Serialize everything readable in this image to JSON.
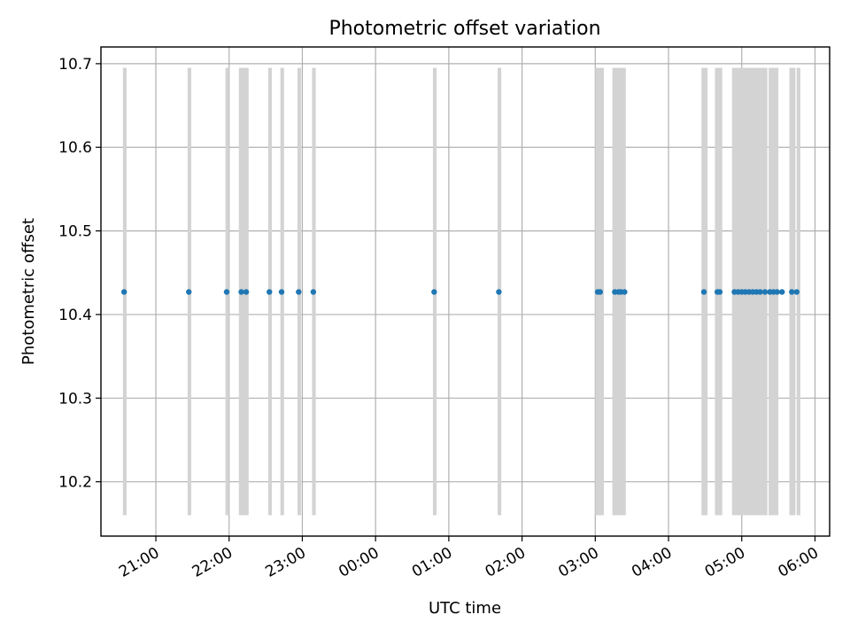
{
  "chart_data": {
    "type": "scatter",
    "title": "Photometric offset variation",
    "xlabel": "UTC time",
    "ylabel": "Photometric offset",
    "x_unit": "time of day (UTC), hours; values past midnight continue as 24+",
    "xlim": [
      "20:15",
      "06:12"
    ],
    "ylim": [
      10.135,
      10.72
    ],
    "x_tick_labels": [
      "21:00",
      "22:00",
      "23:00",
      "00:00",
      "01:00",
      "02:00",
      "03:00",
      "04:00",
      "05:00",
      "06:00"
    ],
    "y_tick_labels": [
      "10.2",
      "10.3",
      "10.4",
      "10.5",
      "10.6",
      "10.7"
    ],
    "grid": true,
    "colors": {
      "points": "#1f77b4",
      "bands": "#d3d3d3",
      "grid": "#b0b0b0"
    },
    "band_range": [
      10.16,
      10.695
    ],
    "bands": [
      [
        "20:33",
        "20:36"
      ],
      [
        "21:26",
        "21:29"
      ],
      [
        "21:57",
        "22:00"
      ],
      [
        "22:08",
        "22:16"
      ],
      [
        "22:32",
        "22:35"
      ],
      [
        "22:42",
        "22:45"
      ],
      [
        "22:56",
        "22:59"
      ],
      [
        "23:08",
        "23:11"
      ],
      [
        "00:47",
        "00:50"
      ],
      [
        "01:40",
        "01:43"
      ],
      [
        "03:00",
        "03:07"
      ],
      [
        "03:14",
        "03:25"
      ],
      [
        "04:27",
        "04:32"
      ],
      [
        "04:38",
        "04:44"
      ],
      [
        "04:52",
        "05:21"
      ],
      [
        "05:22",
        "05:30"
      ],
      [
        "05:39",
        "05:44"
      ],
      [
        "05:45",
        "05:48"
      ]
    ],
    "series": [
      {
        "x": [
          "20:34",
          "21:27",
          "21:58",
          "22:10",
          "22:14",
          "22:33",
          "22:43",
          "22:57",
          "23:09",
          "00:48",
          "01:41",
          "03:02",
          "03:04",
          "03:16",
          "03:19",
          "03:21",
          "03:24",
          "04:29",
          "04:40",
          "04:42",
          "04:54",
          "04:57",
          "05:00",
          "05:03",
          "05:06",
          "05:09",
          "05:12",
          "05:15",
          "05:19",
          "05:23",
          "05:26",
          "05:29",
          "05:33",
          "05:41",
          "05:45"
        ],
        "y": [
          10.427,
          10.427,
          10.427,
          10.427,
          10.427,
          10.427,
          10.427,
          10.427,
          10.427,
          10.427,
          10.427,
          10.427,
          10.427,
          10.427,
          10.427,
          10.427,
          10.427,
          10.427,
          10.427,
          10.427,
          10.427,
          10.427,
          10.427,
          10.427,
          10.427,
          10.427,
          10.427,
          10.427,
          10.427,
          10.427,
          10.427,
          10.427,
          10.427,
          10.427,
          10.427
        ]
      }
    ]
  }
}
